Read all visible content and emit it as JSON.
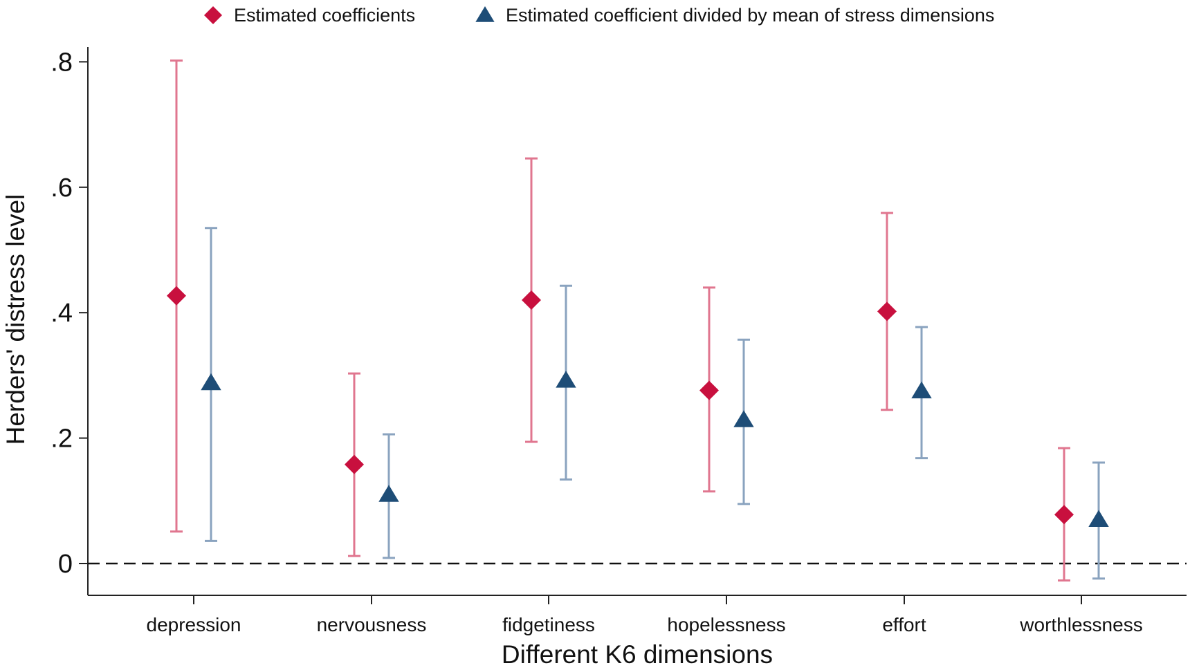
{
  "chart_data": {
    "type": "scatter",
    "title": "",
    "xlabel": "Different K6 dimensions",
    "ylabel": "Herders' distress level",
    "ylim": [
      -0.05,
      0.83
    ],
    "yticks": [
      0,
      0.2,
      0.4,
      0.6,
      0.8
    ],
    "ytick_labels": [
      "0",
      ".2",
      ".4",
      ".6",
      ".8"
    ],
    "categories": [
      "depression",
      "nervousness",
      "fidgetiness",
      "hopelessness",
      "effort",
      "worthlessness"
    ],
    "reference_line": {
      "y": 0,
      "style": "dashed"
    },
    "grid": false,
    "legend_position": "top",
    "series": [
      {
        "name": "Estimated coefficients",
        "marker": "diamond",
        "color": "#c8103e",
        "ci_color": "#e0768f",
        "values": [
          0.427,
          0.158,
          0.42,
          0.276,
          0.402,
          0.078
        ],
        "ci_lower": [
          0.051,
          0.012,
          0.194,
          0.115,
          0.245,
          -0.027
        ],
        "ci_upper": [
          0.802,
          0.303,
          0.646,
          0.44,
          0.559,
          0.184
        ]
      },
      {
        "name": "Estimated coefficient divided by mean of stress dimensions",
        "marker": "triangle",
        "color": "#1e4d77",
        "ci_color": "#8aa3bf",
        "values": [
          0.288,
          0.11,
          0.292,
          0.229,
          0.275,
          0.07
        ],
        "ci_lower": [
          0.036,
          0.009,
          0.134,
          0.095,
          0.168,
          -0.024
        ],
        "ci_upper": [
          0.535,
          0.206,
          0.443,
          0.357,
          0.377,
          0.161
        ]
      }
    ]
  }
}
